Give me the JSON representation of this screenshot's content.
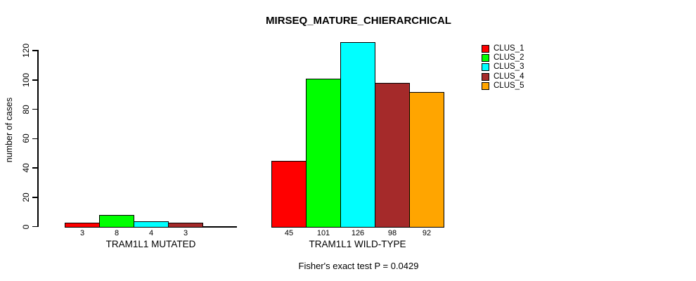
{
  "title": "MIRSEQ_MATURE_CHIERARCHICAL",
  "footer": "Fisher's exact test P = 0.0429",
  "colors": {
    "background": "#FFFFFF",
    "axis": "#000000",
    "bar_border": "#000000"
  },
  "chart_data": {
    "type": "bar",
    "title": "MIRSEQ_MATURE_CHIERARCHICAL",
    "xlabel": "",
    "ylabel": "number of cases",
    "ylim": [
      0,
      126
    ],
    "yticks": [
      0,
      20,
      40,
      60,
      80,
      100,
      120
    ],
    "grid": false,
    "legend_position": "top-right",
    "categories": [
      "TRAM1L1 MUTATED",
      "TRAM1L1 WILD-TYPE"
    ],
    "series": [
      {
        "name": "CLUS_1",
        "color": "#FF0000",
        "values": [
          3,
          45
        ]
      },
      {
        "name": "CLUS_2",
        "color": "#00FF00",
        "values": [
          8,
          101
        ]
      },
      {
        "name": "CLUS_3",
        "color": "#00FFFF",
        "values": [
          4,
          126
        ]
      },
      {
        "name": "CLUS_4",
        "color": "#A52A2A",
        "values": [
          3,
          98
        ]
      },
      {
        "name": "CLUS_5",
        "color": "#FFA500",
        "values": [
          0,
          92
        ]
      }
    ],
    "bar_labels": [
      [
        "3",
        "8",
        "4",
        "3",
        ""
      ],
      [
        "45",
        "101",
        "126",
        "98",
        "92"
      ]
    ],
    "annotation": "Fisher's exact test P = 0.0429"
  }
}
